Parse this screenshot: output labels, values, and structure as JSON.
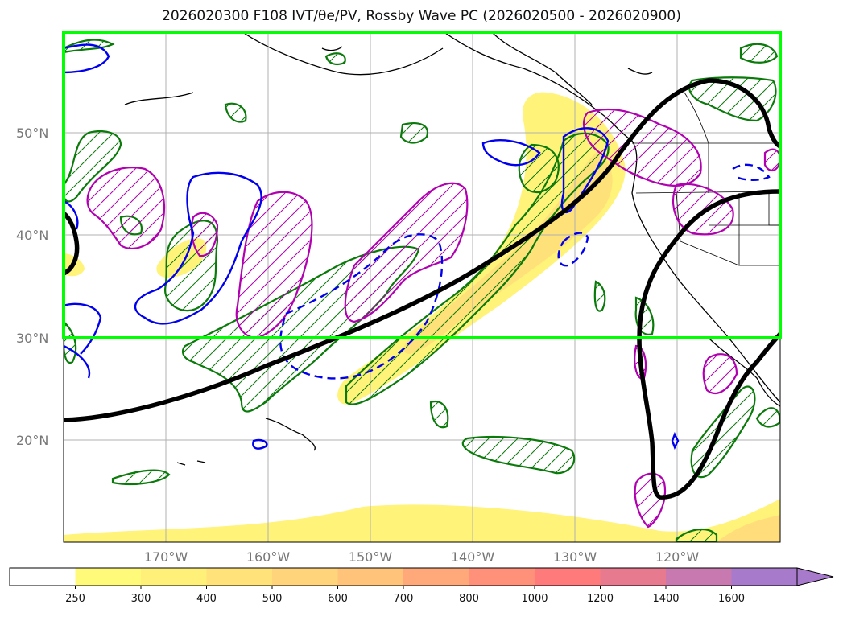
{
  "title": "2026020300 F108 IVT/θe/PV, Rossby Wave PC (2026020500 - 2026020900)",
  "latitude_labels": [
    "50°N",
    "40°N",
    "30°N",
    "20°N"
  ],
  "longitude_labels": [
    "170°W",
    "160°W",
    "150°W",
    "140°W",
    "130°W",
    "120°W"
  ],
  "colorbar": {
    "ticks": [
      "250",
      "300",
      "400",
      "500",
      "600",
      "700",
      "800",
      "1000",
      "1200",
      "1400",
      "1600"
    ],
    "colors": [
      "#ffffff",
      "#fffa7a",
      "#fff07a",
      "#ffe27a",
      "#ffd47a",
      "#ffc47a",
      "#ffa87a",
      "#ff907a",
      "#ff7a7a",
      "#e87a90",
      "#c87ab0",
      "#a87acc"
    ]
  },
  "colors": {
    "highlight_box": "#00ff00",
    "ivt_fill": "#fff37a",
    "ivt_core": "#ffd27a",
    "pv_contour": "#000000",
    "green_contour": "#0a7a0a",
    "magenta_contour": "#b000b0",
    "blue_contour": "#0000ee"
  }
}
